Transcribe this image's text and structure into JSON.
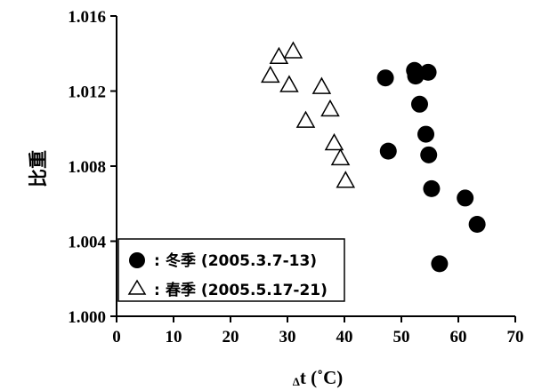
{
  "chart_data": {
    "type": "scatter",
    "title": "",
    "xlabel": "t (˚C)",
    "xlabel_prefix": "Δ",
    "ylabel": "比重",
    "xlim": [
      0,
      70
    ],
    "ylim": [
      1.0,
      1.016
    ],
    "x_ticks": [
      0,
      10,
      20,
      30,
      40,
      50,
      60,
      70
    ],
    "y_ticks": [
      1.0,
      1.004,
      1.008,
      1.012,
      1.016
    ],
    "y_tick_labels": [
      "1.000",
      "1.004",
      "1.008",
      "1.012",
      "1.016"
    ],
    "grid": false,
    "legend_position": "bottom-left",
    "series": [
      {
        "name": "冬季 (2005.3.7-13)",
        "marker": "filled-circle",
        "color": "#000000",
        "points": [
          {
            "x": 47.2,
            "y": 1.0127
          },
          {
            "x": 47.7,
            "y": 1.0088
          },
          {
            "x": 52.3,
            "y": 1.0131
          },
          {
            "x": 52.5,
            "y": 1.0128
          },
          {
            "x": 53.2,
            "y": 1.0113
          },
          {
            "x": 54.3,
            "y": 1.0097
          },
          {
            "x": 54.7,
            "y": 1.013
          },
          {
            "x": 54.8,
            "y": 1.0086
          },
          {
            "x": 55.3,
            "y": 1.0068
          },
          {
            "x": 56.7,
            "y": 1.0028
          },
          {
            "x": 61.2,
            "y": 1.0063
          },
          {
            "x": 63.3,
            "y": 1.0049
          }
        ]
      },
      {
        "name": "春季 (2005.5.17-21)",
        "marker": "open-triangle",
        "color": "#000000",
        "points": [
          {
            "x": 27.0,
            "y": 1.0128
          },
          {
            "x": 28.5,
            "y": 1.0138
          },
          {
            "x": 30.3,
            "y": 1.0123
          },
          {
            "x": 31.0,
            "y": 1.0141
          },
          {
            "x": 33.2,
            "y": 1.0104
          },
          {
            "x": 36.0,
            "y": 1.0122
          },
          {
            "x": 37.5,
            "y": 1.011
          },
          {
            "x": 38.2,
            "y": 1.0092
          },
          {
            "x": 39.3,
            "y": 1.0084
          },
          {
            "x": 40.2,
            "y": 1.0072
          }
        ]
      }
    ],
    "legend": [
      {
        "marker": "filled-circle",
        "separator": ":",
        "label": "冬季 (2005.3.7-13)"
      },
      {
        "marker": "open-triangle",
        "separator": ":",
        "label": "春季 (2005.5.17-21)"
      }
    ]
  }
}
